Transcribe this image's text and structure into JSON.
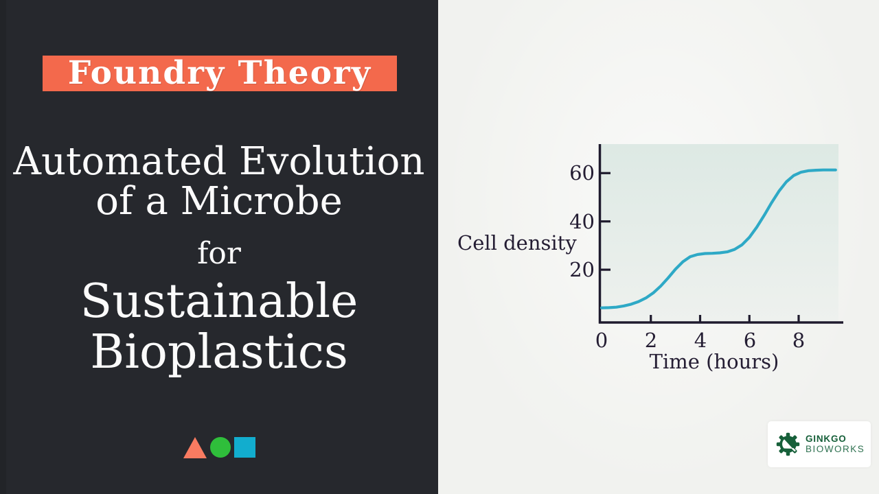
{
  "left_panel": {
    "brand": "Foundry Theory",
    "brand_banner_color": "#f3694c",
    "background_color": "#26282d",
    "title_lines": [
      "Automated Evolution",
      "of a Microbe",
      "for",
      "Sustainable",
      "Bioplastics"
    ],
    "shapes": [
      {
        "name": "triangle",
        "color": "#f97b61"
      },
      {
        "name": "circle",
        "color": "#2fbe3b"
      },
      {
        "name": "square",
        "color": "#12adce"
      }
    ]
  },
  "right_panel": {
    "background_color": "#f1f2ef"
  },
  "chart_data": {
    "type": "line",
    "title": "",
    "xlabel": "Time (hours)",
    "ylabel": "Cell density",
    "xlim": [
      0,
      9.6
    ],
    "ylim": [
      0,
      72
    ],
    "grid": false,
    "legend": "none",
    "x_ticks": [
      0,
      2,
      4,
      6,
      8
    ],
    "x_tick_labels": [
      "0",
      "2",
      "4",
      "6",
      "8"
    ],
    "y_ticks": [
      20,
      40,
      60
    ],
    "y_tick_labels": [
      "20",
      "40",
      "60"
    ],
    "axis_color": "#1f1b2e",
    "line_color": "#2ea9c6",
    "plot_bg_top": "#dde9e4",
    "plot_bg_bottom": "#eef1ee",
    "series": [
      {
        "name": "Cell density",
        "points": [
          [
            0.0,
            4.2
          ],
          [
            0.3,
            4.3
          ],
          [
            0.6,
            4.5
          ],
          [
            0.9,
            5.0
          ],
          [
            1.2,
            5.7
          ],
          [
            1.5,
            6.8
          ],
          [
            1.8,
            8.3
          ],
          [
            2.1,
            10.4
          ],
          [
            2.4,
            13.2
          ],
          [
            2.7,
            16.6
          ],
          [
            3.0,
            20.2
          ],
          [
            3.3,
            23.3
          ],
          [
            3.6,
            25.4
          ],
          [
            3.9,
            26.3
          ],
          [
            4.2,
            26.7
          ],
          [
            4.5,
            26.8
          ],
          [
            4.8,
            27.0
          ],
          [
            5.1,
            27.4
          ],
          [
            5.4,
            28.4
          ],
          [
            5.7,
            30.3
          ],
          [
            6.0,
            33.4
          ],
          [
            6.3,
            37.6
          ],
          [
            6.6,
            42.5
          ],
          [
            6.9,
            47.7
          ],
          [
            7.2,
            52.5
          ],
          [
            7.5,
            56.4
          ],
          [
            7.8,
            59.0
          ],
          [
            8.1,
            60.4
          ],
          [
            8.4,
            61.0
          ],
          [
            8.7,
            61.2
          ],
          [
            9.0,
            61.3
          ],
          [
            9.3,
            61.3
          ],
          [
            9.5,
            61.3
          ]
        ]
      }
    ],
    "annotations": {
      "first_plateau_value": 27,
      "second_plateau_value": 61,
      "description": "Diauxic growth curve: two sigmoidal rises separated by a plateau"
    }
  },
  "logo": {
    "line1": "GINKGO",
    "line2": "BIOWORKS",
    "brand_color": "#17603a",
    "icon": "gear-with-ginkgo-leaf"
  }
}
